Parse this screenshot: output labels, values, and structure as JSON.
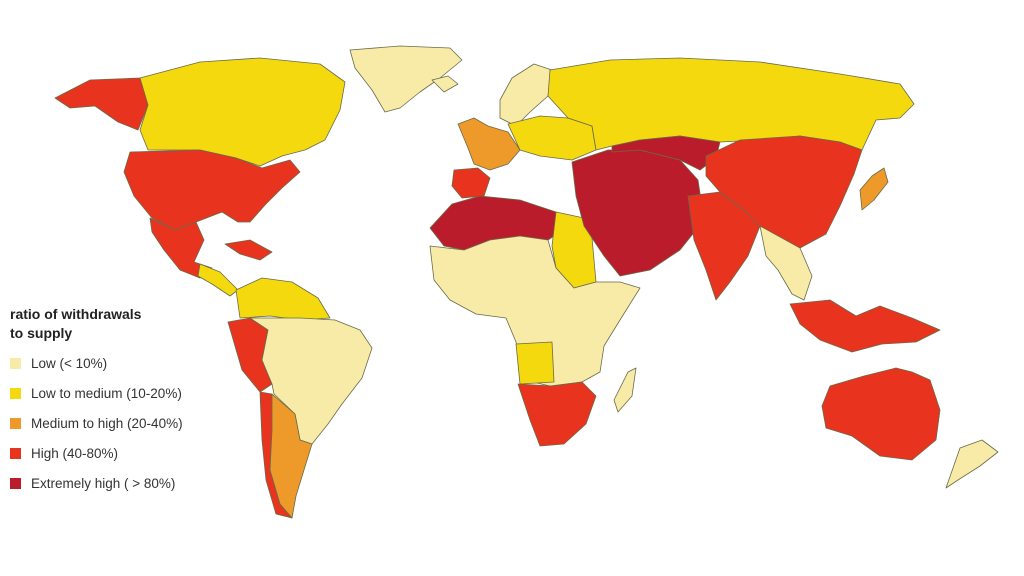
{
  "legend": {
    "title_line1": "ratio of withdrawals",
    "title_line2": "to supply",
    "items": [
      {
        "label": "Low (< 10%)",
        "color": "#f7eba7"
      },
      {
        "label": "Low to medium (10-20%)",
        "color": "#f4d90f"
      },
      {
        "label": "Medium to high  (20-40%)",
        "color": "#ee9a2a"
      },
      {
        "label": "High (40-80%)",
        "color": "#e8331e"
      },
      {
        "label": "Extremely high ( > 80%)",
        "color": "#bb1c2b"
      }
    ]
  },
  "regions": [
    {
      "name": "greenland",
      "category": "low"
    },
    {
      "name": "alaska",
      "category": "high"
    },
    {
      "name": "canada",
      "category": "low-to-medium"
    },
    {
      "name": "usa",
      "category": "high"
    },
    {
      "name": "mexico",
      "category": "high"
    },
    {
      "name": "central-america",
      "category": "low-to-medium"
    },
    {
      "name": "caribbean",
      "category": "high"
    },
    {
      "name": "northern-south-america",
      "category": "low-to-medium"
    },
    {
      "name": "brazil",
      "category": "low"
    },
    {
      "name": "peru",
      "category": "high"
    },
    {
      "name": "chile",
      "category": "high"
    },
    {
      "name": "argentina",
      "category": "medium-to-high"
    },
    {
      "name": "iceland",
      "category": "low"
    },
    {
      "name": "scandinavia",
      "category": "low"
    },
    {
      "name": "western-europe",
      "category": "medium-to-high"
    },
    {
      "name": "eastern-europe",
      "category": "low-to-medium"
    },
    {
      "name": "iberia",
      "category": "high"
    },
    {
      "name": "russia",
      "category": "low-to-medium"
    },
    {
      "name": "north-africa",
      "category": "extremely-high"
    },
    {
      "name": "sahel",
      "category": "low-to-medium"
    },
    {
      "name": "central-africa",
      "category": "low"
    },
    {
      "name": "angola",
      "category": "low-to-medium"
    },
    {
      "name": "southern-africa",
      "category": "high"
    },
    {
      "name": "madagascar",
      "category": "low"
    },
    {
      "name": "middle-east",
      "category": "extremely-high"
    },
    {
      "name": "central-asia",
      "category": "extremely-high"
    },
    {
      "name": "india",
      "category": "high"
    },
    {
      "name": "china",
      "category": "high"
    },
    {
      "name": "japan",
      "category": "medium-to-high"
    },
    {
      "name": "southeast-asia",
      "category": "low"
    },
    {
      "name": "indonesia",
      "category": "high"
    },
    {
      "name": "australia",
      "category": "high"
    },
    {
      "name": "new-zealand",
      "category": "low"
    }
  ]
}
